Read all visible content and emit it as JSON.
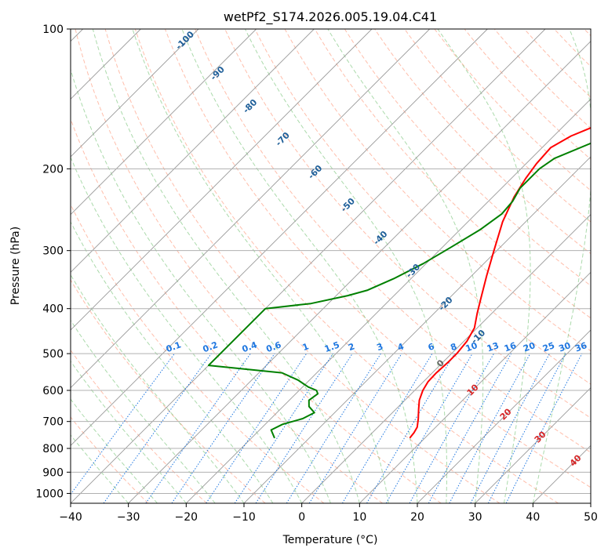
{
  "chart_data": {
    "type": "line",
    "title": "wetPf2_S174.2026.005.19.04.C41",
    "xlabel": "Temperature (°C)",
    "ylabel": "Pressure (hPa)",
    "xlim": [
      -40,
      50
    ],
    "ylim": [
      1050,
      100
    ],
    "yscale": "log",
    "x_ticks": [
      "−40",
      "−30",
      "−20",
      "−10",
      "0",
      "10",
      "20",
      "30",
      "40",
      "50"
    ],
    "y_ticks": [
      "100",
      "200",
      "300",
      "400",
      "500",
      "600",
      "700",
      "800",
      "900",
      "1000"
    ],
    "grid": true,
    "skew": 45,
    "colors": {
      "temperature": "#ff0000",
      "dewpoint": "#008000",
      "dry_adiabat": "#ff8866",
      "moist_adiabat": "#66bb66",
      "mixing_ratio": "#1f77e0",
      "isotherm_label": "#1f5f99",
      "mixing_label": "#1f77e0",
      "adiabat_label": "#d62728"
    },
    "series": [
      {
        "key": "temperature",
        "x": [
          7.4,
          7.2,
          6.8,
          5.5,
          4.0,
          2.5,
          1.4,
          0.8,
          0.7,
          0.9,
          0.9,
          0.5,
          -0.5,
          -2.5,
          -4.5,
          -7.4,
          -10.5,
          -14.0,
          -16.3,
          -17.5,
          -18.2,
          -18.5,
          -17.0,
          -14.0,
          -11.0,
          -8.0,
          -5.5
        ],
        "y": [
          760,
          740,
          720,
          690,
          660,
          630,
          600,
          575,
          550,
          520,
          500,
          470,
          440,
          410,
          380,
          340,
          300,
          260,
          230,
          210,
          195,
          180,
          170,
          160,
          145,
          125,
          100
        ]
      },
      {
        "key": "dewpoint",
        "x": [
          -16.0,
          -18.0,
          -17.0,
          -14.5,
          -13.5,
          -15.5,
          -16.6,
          -16.2,
          -17.0,
          -19.0,
          -22.0,
          -26.0,
          -40.0,
          -40.0,
          -33.0,
          -28.0,
          -25.5,
          -23.0,
          -20.5,
          -18.5,
          -16.5,
          -15.5,
          -15.8,
          -16.8,
          -16.8,
          -16.0,
          -12.0,
          -9.5,
          -8.0,
          -5.0,
          -0.5
        ],
        "y": [
          760,
          730,
          710,
          690,
          670,
          650,
          630,
          610,
          600,
          590,
          570,
          550,
          530,
          400,
          390,
          375,
          365,
          345,
          320,
          295,
          270,
          250,
          235,
          220,
          200,
          190,
          175,
          165,
          140,
          125,
          100
        ]
      }
    ],
    "isotherm_labels": [
      "-100",
      "-90",
      "-80",
      "-70",
      "-60",
      "-50",
      "-40",
      "-30",
      "-20",
      "-10"
    ],
    "isotherm_label_values": [
      -100,
      -90,
      -80,
      -70,
      -60,
      -50,
      -40,
      -30,
      -20,
      -10
    ],
    "mixing_ratio_labels": [
      "0.1",
      "0.2",
      "0.4",
      "0.6",
      "1",
      "1.5",
      "2",
      "3",
      "4",
      "6",
      "8",
      "10",
      "13",
      "16",
      "20",
      "25",
      "30",
      "36"
    ],
    "mixing_ratio_values": [
      0.1,
      0.2,
      0.4,
      0.6,
      1,
      1.5,
      2,
      3,
      4,
      6,
      8,
      10,
      13,
      16,
      20,
      25,
      30,
      36
    ],
    "dry_adiabat_labels": [
      "0",
      "10",
      "20",
      "30",
      "40"
    ],
    "dry_adiabat_values": [
      0,
      10,
      20,
      30,
      40
    ]
  }
}
